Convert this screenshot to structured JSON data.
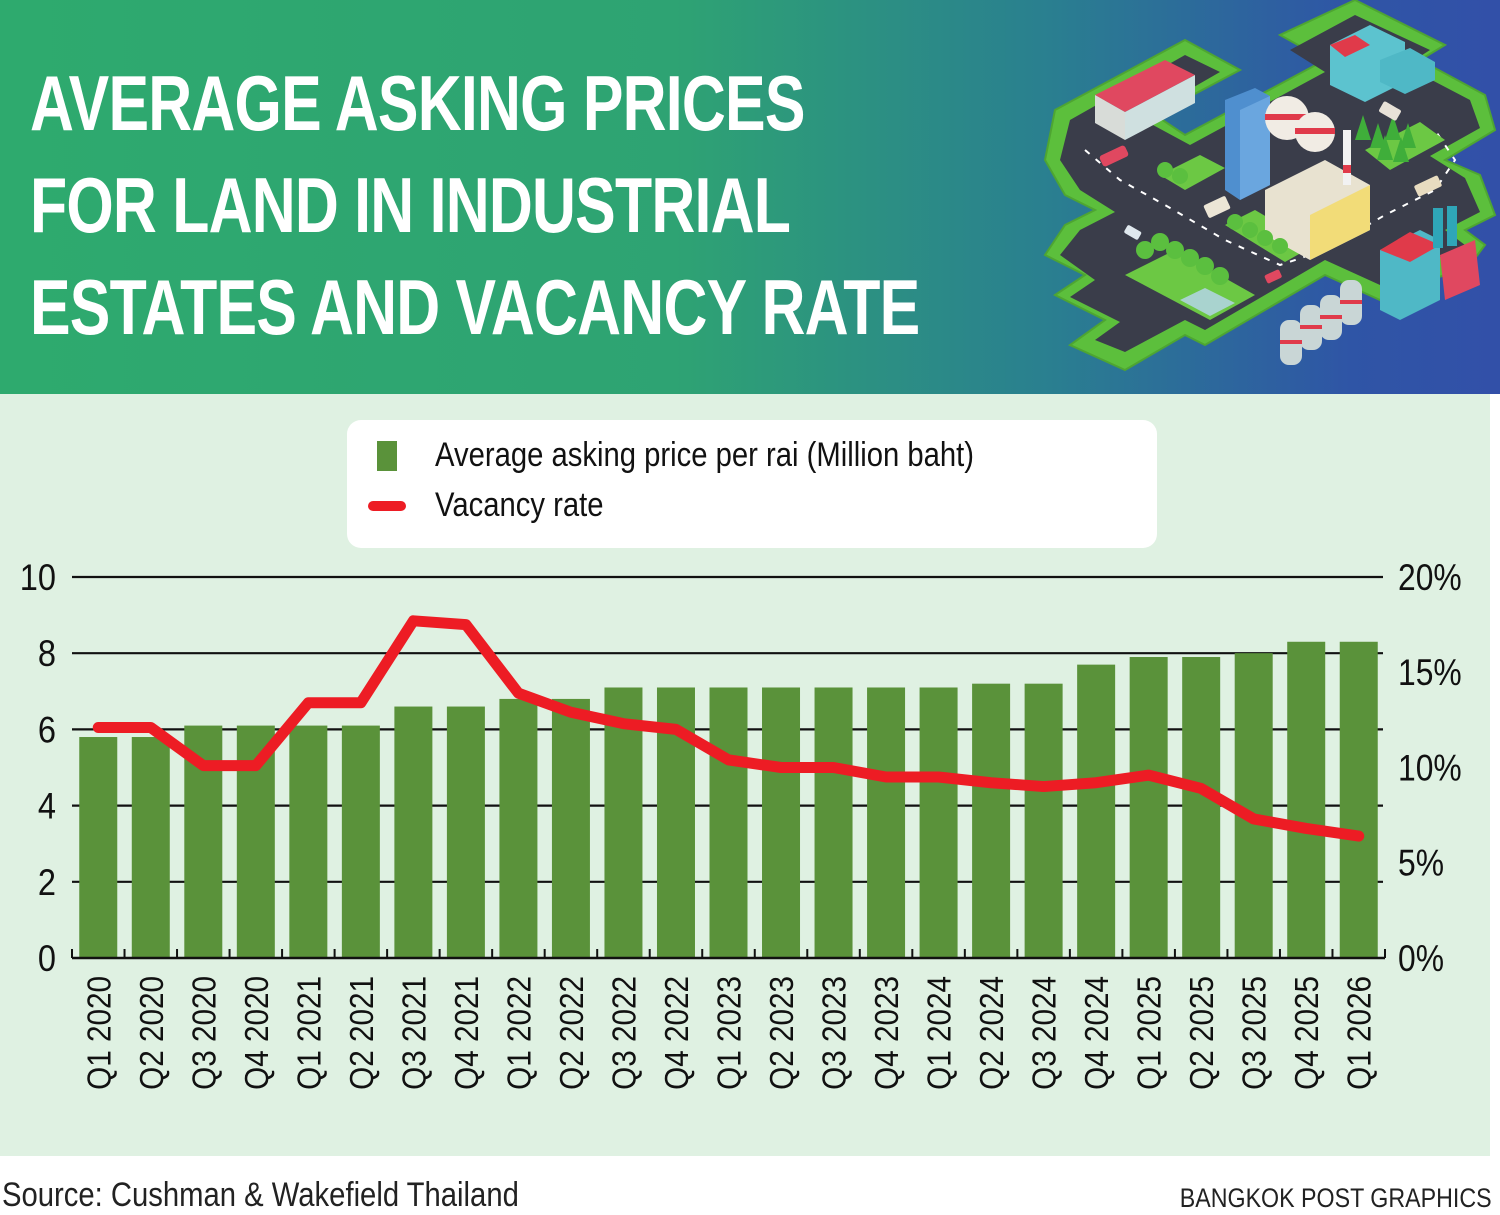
{
  "header": {
    "title_lines": [
      "AVERAGE ASKING PRICES",
      "FOR LAND IN INDUSTRIAL",
      "ESTATES AND VACANCY RATE"
    ],
    "illustration": "isometric-industrial-estate-illustration"
  },
  "legend": {
    "items": [
      {
        "label": "Average asking price per rai (Million baht)",
        "symbol": "green-square",
        "color": "#5a923a"
      },
      {
        "label": "Vacancy rate",
        "symbol": "red-line",
        "color": "#ed1c24"
      }
    ]
  },
  "chart_data": {
    "type": "bar+line",
    "title": "Average asking prices for land in industrial estates and vacancy rate",
    "categories": [
      "Q1 2020",
      "Q2 2020",
      "Q3 2020",
      "Q4 2020",
      "Q1 2021",
      "Q2 2021",
      "Q3 2021",
      "Q4 2021",
      "Q1 2022",
      "Q2 2022",
      "Q3 2022",
      "Q4 2022",
      "Q1 2023",
      "Q2 2023",
      "Q3 2023",
      "Q4 2023",
      "Q1 2024",
      "Q2 2024",
      "Q3 2024",
      "Q4 2024",
      "Q1 2025",
      "Q2 2025",
      "Q3 2025",
      "Q4 2025",
      "Q1 2026"
    ],
    "series": [
      {
        "name": "Average asking price per rai (Million baht)",
        "type": "bar",
        "axis": "left",
        "color": "#5a923a",
        "values": [
          5.8,
          5.8,
          6.1,
          6.1,
          6.1,
          6.1,
          6.6,
          6.6,
          6.8,
          6.8,
          7.1,
          7.1,
          7.1,
          7.1,
          7.1,
          7.1,
          7.1,
          7.2,
          7.2,
          7.7,
          7.9,
          7.9,
          8.0,
          8.3,
          8.3
        ]
      },
      {
        "name": "Vacancy rate",
        "type": "line",
        "axis": "right",
        "unit": "%",
        "color": "#ed1c24",
        "values": [
          12.1,
          12.1,
          10.1,
          10.1,
          13.4,
          13.4,
          17.7,
          17.5,
          13.9,
          12.9,
          12.3,
          12.0,
          10.4,
          10.0,
          10.0,
          9.5,
          9.5,
          9.2,
          9.0,
          9.2,
          9.6,
          8.9,
          7.3,
          6.8,
          6.4
        ]
      }
    ],
    "y_left": {
      "ylim": [
        0,
        10
      ],
      "ticks": [
        "0",
        "2",
        "4",
        "6",
        "8",
        "10"
      ],
      "tick_values": [
        0,
        2,
        4,
        6,
        8,
        10
      ]
    },
    "y_right": {
      "ylim": [
        0,
        20
      ],
      "ticks": [
        "0%",
        "5%",
        "10%",
        "15%",
        "20%"
      ],
      "tick_values": [
        0,
        5,
        10,
        15,
        20
      ]
    },
    "xlabel": "",
    "grid": true,
    "legend_position": "top-center"
  },
  "footer": {
    "source": "Source: Cushman & Wakefield Thailand",
    "credit": "BANGKOK POST GRAPHICS"
  }
}
